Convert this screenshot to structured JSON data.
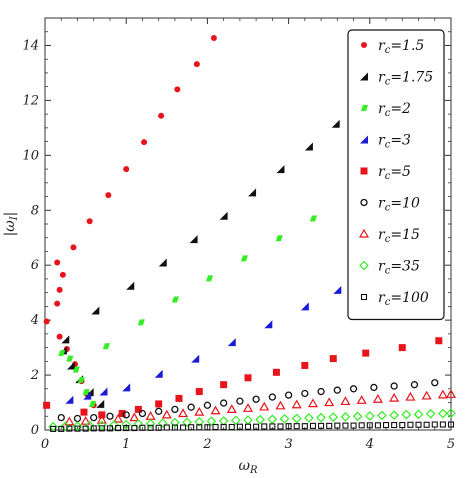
{
  "chart_data": {
    "type": "scatter",
    "title": "",
    "xlabel": "ω",
    "xlabel_sub": "R",
    "ylabel": "|ω",
    "ylabel_sub": "I",
    "ylabel_suffix": "|",
    "xlim": [
      0,
      5
    ],
    "ylim": [
      0,
      15
    ],
    "x_ticks": [
      0,
      1,
      2,
      3,
      4,
      5
    ],
    "y_ticks": [
      0,
      2,
      4,
      6,
      8,
      10,
      12,
      14
    ],
    "grid": false,
    "legend_position": "top-right",
    "series": [
      {
        "name": "r",
        "name_sub": "c",
        "name_suffix": "=1.5",
        "marker": "dot",
        "color": "#e8141c",
        "points": [
          [
            0.02,
            3.95
          ],
          [
            0.15,
            4.6
          ],
          [
            0.18,
            5.1
          ],
          [
            0.15,
            6.1
          ],
          [
            0.22,
            5.65
          ],
          [
            0.35,
            6.65
          ],
          [
            0.55,
            7.6
          ],
          [
            0.78,
            8.55
          ],
          [
            1.0,
            9.5
          ],
          [
            1.22,
            10.48
          ],
          [
            1.43,
            11.44
          ],
          [
            1.63,
            12.4
          ],
          [
            1.87,
            13.32
          ],
          [
            2.08,
            14.27
          ],
          [
            0.18,
            3.4
          ],
          [
            0.27,
            2.95
          ],
          [
            0.37,
            2.4
          ],
          [
            0.45,
            1.78
          ],
          [
            0.52,
            1.3
          ],
          [
            0.6,
            0.9
          ]
        ]
      },
      {
        "name": "r",
        "name_sub": "c",
        "name_suffix": "=1.75",
        "marker": "triangle-left",
        "color": "#111111",
        "points": [
          [
            0.25,
            3.3
          ],
          [
            0.22,
            2.9
          ],
          [
            0.32,
            2.35
          ],
          [
            0.42,
            1.85
          ],
          [
            0.55,
            1.38
          ],
          [
            0.68,
            0.95
          ],
          [
            0.62,
            4.35
          ],
          [
            1.05,
            5.25
          ],
          [
            1.45,
            6.1
          ],
          [
            1.83,
            6.95
          ],
          [
            2.2,
            7.8
          ],
          [
            2.55,
            8.65
          ],
          [
            2.9,
            9.5
          ],
          [
            3.25,
            10.32
          ],
          [
            3.58,
            11.15
          ]
        ]
      },
      {
        "name": "r",
        "name_sub": "c",
        "name_suffix": "=2",
        "marker": "parallelogram",
        "color": "#33ee22",
        "points": [
          [
            0.2,
            2.8
          ],
          [
            0.3,
            2.6
          ],
          [
            0.38,
            2.2
          ],
          [
            0.44,
            1.82
          ],
          [
            0.5,
            1.38
          ],
          [
            0.58,
            0.95
          ],
          [
            0.75,
            3.05
          ],
          [
            1.18,
            3.92
          ],
          [
            1.6,
            4.75
          ],
          [
            2.02,
            5.52
          ],
          [
            2.45,
            6.25
          ],
          [
            2.88,
            6.98
          ],
          [
            3.3,
            7.7
          ]
        ]
      },
      {
        "name": "r",
        "name_sub": "c",
        "name_suffix": "=3",
        "marker": "triangle-right",
        "color": "#1a1ad8",
        "points": [
          [
            0.3,
            1.1
          ],
          [
            0.52,
            1.25
          ],
          [
            0.72,
            1.4
          ],
          [
            1.0,
            1.55
          ],
          [
            1.4,
            2.05
          ],
          [
            1.85,
            2.6
          ],
          [
            2.3,
            3.2
          ],
          [
            2.75,
            3.85
          ],
          [
            3.2,
            4.5
          ],
          [
            3.6,
            5.1
          ]
        ]
      },
      {
        "name": "r",
        "name_sub": "c",
        "name_suffix": "=5",
        "marker": "square",
        "color": "#e8141c",
        "points": [
          [
            0.02,
            0.9
          ],
          [
            0.48,
            0.65
          ],
          [
            0.7,
            0.55
          ],
          [
            0.95,
            0.6
          ],
          [
            1.15,
            0.75
          ],
          [
            1.4,
            0.95
          ],
          [
            1.65,
            1.15
          ],
          [
            1.9,
            1.4
          ],
          [
            2.2,
            1.65
          ],
          [
            2.5,
            1.9
          ],
          [
            2.85,
            2.1
          ],
          [
            3.2,
            2.35
          ],
          [
            3.55,
            2.6
          ],
          [
            3.95,
            2.8
          ],
          [
            4.4,
            3.0
          ],
          [
            4.85,
            3.25
          ]
        ]
      },
      {
        "name": "r",
        "name_sub": "c",
        "name_suffix": "=10",
        "marker": "circle-open",
        "color": "#111111",
        "points": [
          [
            0.2,
            0.45
          ],
          [
            0.4,
            0.42
          ],
          [
            0.6,
            0.45
          ],
          [
            0.8,
            0.5
          ],
          [
            1.0,
            0.55
          ],
          [
            1.2,
            0.6
          ],
          [
            1.4,
            0.68
          ],
          [
            1.6,
            0.75
          ],
          [
            1.8,
            0.83
          ],
          [
            2.0,
            0.9
          ],
          [
            2.2,
            0.98
          ],
          [
            2.4,
            1.05
          ],
          [
            2.6,
            1.12
          ],
          [
            2.8,
            1.2
          ],
          [
            3.0,
            1.27
          ],
          [
            3.2,
            1.33
          ],
          [
            3.4,
            1.4
          ],
          [
            3.6,
            1.45
          ],
          [
            3.8,
            1.5
          ],
          [
            4.05,
            1.55
          ],
          [
            4.3,
            1.6
          ],
          [
            4.55,
            1.65
          ],
          [
            4.8,
            1.72
          ]
        ]
      },
      {
        "name": "r",
        "name_sub": "c",
        "name_suffix": "=15",
        "marker": "triangle-open",
        "color": "#e8141c",
        "points": [
          [
            0.3,
            0.3
          ],
          [
            0.5,
            0.32
          ],
          [
            0.7,
            0.36
          ],
          [
            0.9,
            0.4
          ],
          [
            1.1,
            0.45
          ],
          [
            1.3,
            0.5
          ],
          [
            1.5,
            0.55
          ],
          [
            1.7,
            0.6
          ],
          [
            1.9,
            0.65
          ],
          [
            2.1,
            0.7
          ],
          [
            2.3,
            0.75
          ],
          [
            2.5,
            0.79
          ],
          [
            2.7,
            0.84
          ],
          [
            2.9,
            0.88
          ],
          [
            3.1,
            0.92
          ],
          [
            3.3,
            0.96
          ],
          [
            3.5,
            1.0
          ],
          [
            3.7,
            1.04
          ],
          [
            3.9,
            1.08
          ],
          [
            4.1,
            1.12
          ],
          [
            4.3,
            1.16
          ],
          [
            4.5,
            1.2
          ],
          [
            4.7,
            1.24
          ],
          [
            4.9,
            1.28
          ],
          [
            5.0,
            1.3
          ]
        ]
      },
      {
        "name": "r",
        "name_sub": "c",
        "name_suffix": "=35",
        "marker": "diamond-open",
        "color": "#33ee22",
        "points": [
          [
            0.1,
            0.12
          ],
          [
            0.25,
            0.13
          ],
          [
            0.4,
            0.14
          ],
          [
            0.55,
            0.16
          ],
          [
            0.7,
            0.17
          ],
          [
            0.85,
            0.18
          ],
          [
            1.0,
            0.2
          ],
          [
            1.15,
            0.22
          ],
          [
            1.3,
            0.23
          ],
          [
            1.45,
            0.25
          ],
          [
            1.6,
            0.27
          ],
          [
            1.75,
            0.28
          ],
          [
            1.9,
            0.3
          ],
          [
            2.05,
            0.32
          ],
          [
            2.2,
            0.33
          ],
          [
            2.35,
            0.35
          ],
          [
            2.5,
            0.36
          ],
          [
            2.65,
            0.38
          ],
          [
            2.8,
            0.39
          ],
          [
            2.95,
            0.41
          ],
          [
            3.1,
            0.42
          ],
          [
            3.25,
            0.44
          ],
          [
            3.4,
            0.45
          ],
          [
            3.55,
            0.47
          ],
          [
            3.7,
            0.48
          ],
          [
            3.85,
            0.5
          ],
          [
            4.0,
            0.51
          ],
          [
            4.15,
            0.53
          ],
          [
            4.3,
            0.54
          ],
          [
            4.45,
            0.56
          ],
          [
            4.6,
            0.57
          ],
          [
            4.75,
            0.59
          ],
          [
            4.9,
            0.6
          ],
          [
            5.0,
            0.61
          ]
        ]
      },
      {
        "name": "r",
        "name_sub": "c",
        "name_suffix": "=100",
        "marker": "square-open",
        "color": "#111111",
        "points": [
          [
            0.1,
            0.04
          ],
          [
            0.2,
            0.04
          ],
          [
            0.3,
            0.05
          ],
          [
            0.4,
            0.05
          ],
          [
            0.5,
            0.05
          ],
          [
            0.6,
            0.06
          ],
          [
            0.7,
            0.06
          ],
          [
            0.8,
            0.06
          ],
          [
            0.9,
            0.07
          ],
          [
            1.0,
            0.07
          ],
          [
            1.1,
            0.07
          ],
          [
            1.2,
            0.08
          ],
          [
            1.3,
            0.08
          ],
          [
            1.4,
            0.08
          ],
          [
            1.5,
            0.09
          ],
          [
            1.6,
            0.09
          ],
          [
            1.7,
            0.09
          ],
          [
            1.8,
            0.1
          ],
          [
            1.9,
            0.1
          ],
          [
            2.0,
            0.1
          ],
          [
            2.1,
            0.11
          ],
          [
            2.2,
            0.11
          ],
          [
            2.3,
            0.11
          ],
          [
            2.4,
            0.12
          ],
          [
            2.5,
            0.12
          ],
          [
            2.6,
            0.12
          ],
          [
            2.7,
            0.13
          ],
          [
            2.8,
            0.13
          ],
          [
            2.9,
            0.13
          ],
          [
            3.0,
            0.14
          ],
          [
            3.1,
            0.14
          ],
          [
            3.2,
            0.14
          ],
          [
            3.3,
            0.15
          ],
          [
            3.4,
            0.15
          ],
          [
            3.5,
            0.15
          ],
          [
            3.6,
            0.16
          ],
          [
            3.7,
            0.16
          ],
          [
            3.8,
            0.16
          ],
          [
            3.9,
            0.17
          ],
          [
            4.0,
            0.17
          ],
          [
            4.1,
            0.17
          ],
          [
            4.2,
            0.18
          ],
          [
            4.3,
            0.18
          ],
          [
            4.4,
            0.18
          ],
          [
            4.5,
            0.19
          ],
          [
            4.6,
            0.19
          ],
          [
            4.7,
            0.19
          ],
          [
            4.8,
            0.2
          ],
          [
            4.9,
            0.2
          ],
          [
            5.0,
            0.2
          ]
        ]
      }
    ]
  }
}
